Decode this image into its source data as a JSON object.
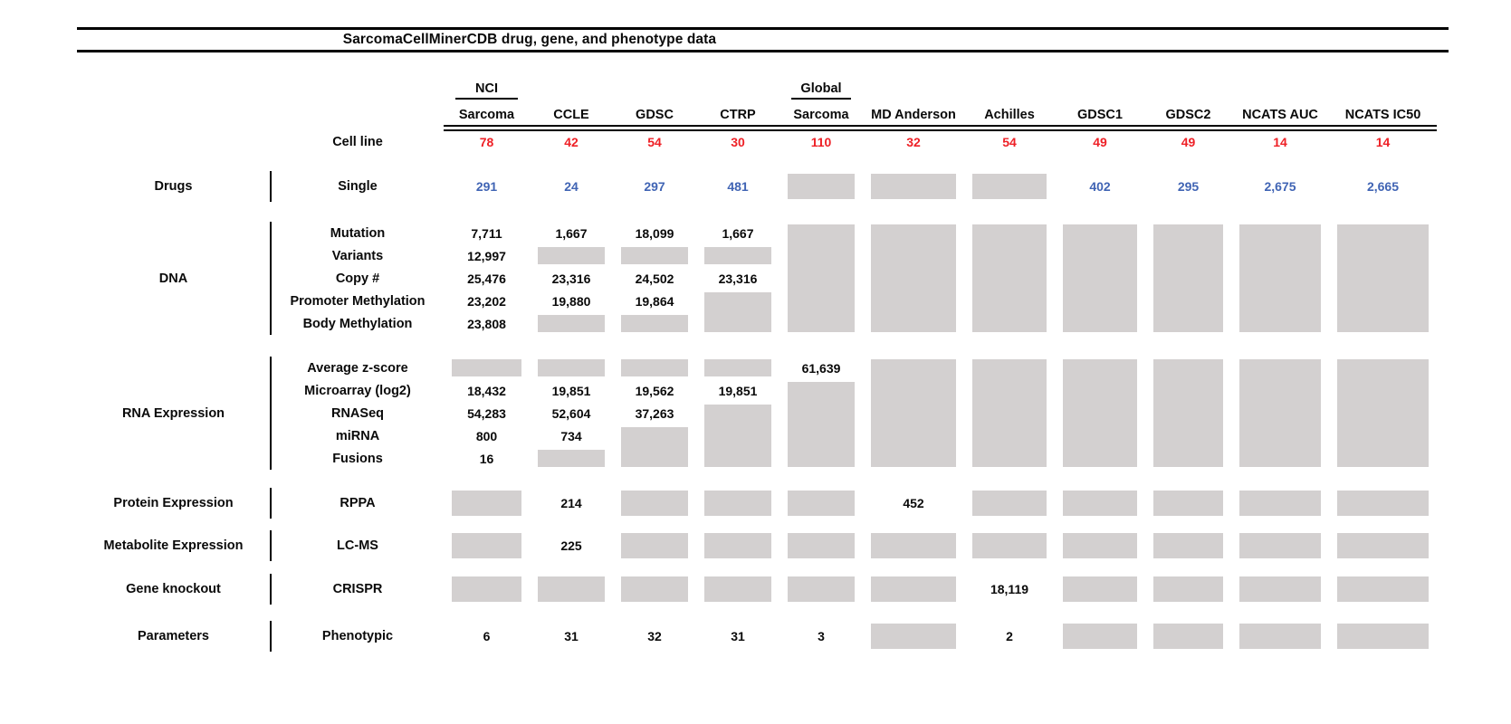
{
  "colors": {
    "red": "#ee2026",
    "blue": "#4064b4",
    "gray_box": "#d3d0d0",
    "rule": "#000000"
  },
  "chart_data": {
    "type": "table",
    "title": "SarcomaCellMinerCDB drug, gene, and phenotype data",
    "gray_box_meaning": "no data",
    "columns": [
      {
        "top": "NCI",
        "label": "Sarcoma"
      },
      {
        "label": "CCLE"
      },
      {
        "label": "GDSC"
      },
      {
        "label": "CTRP"
      },
      {
        "top": "Global",
        "label": "Sarcoma"
      },
      {
        "label": "MD Anderson"
      },
      {
        "label": "Achilles"
      },
      {
        "label": "GDSC1"
      },
      {
        "label": "GDSC2"
      },
      {
        "label": "NCATS AUC"
      },
      {
        "label": "NCATS IC50"
      }
    ],
    "cell_line_row": {
      "label": "Cell line",
      "color": "red",
      "values": [
        "78",
        "42",
        "54",
        "30",
        "110",
        "32",
        "54",
        "49",
        "49",
        "14",
        "14"
      ]
    },
    "sections": [
      {
        "category": "Drugs",
        "rows": [
          {
            "label": "Single",
            "color": "blue",
            "cells": [
              "291",
              "24",
              "297",
              "481",
              {
                "box": 1
              },
              {
                "box": 1
              },
              {
                "box": 1
              },
              "402",
              "295",
              "2,675",
              "2,665"
            ]
          }
        ]
      },
      {
        "category": "DNA",
        "rows": [
          {
            "label": "Mutation",
            "cells": [
              "7,711",
              "1,667",
              "18,099",
              "1,667",
              {
                "box": 5
              },
              {
                "box": 5
              },
              {
                "box": 5
              },
              {
                "box": 5
              },
              {
                "box": 5
              },
              {
                "box": 5
              },
              {
                "box": 5
              }
            ]
          },
          {
            "label": "Variants",
            "cells": [
              "12,997",
              {
                "box": 1
              },
              {
                "box": 1
              },
              {
                "box": 1
              },
              null,
              null,
              null,
              null,
              null,
              null,
              null
            ]
          },
          {
            "label": "Copy #",
            "cells": [
              "25,476",
              "23,316",
              "24,502",
              "23,316",
              null,
              null,
              null,
              null,
              null,
              null,
              null
            ]
          },
          {
            "label": "Promoter Methylation",
            "cells": [
              "23,202",
              "19,880",
              "19,864",
              {
                "box": 2
              },
              null,
              null,
              null,
              null,
              null,
              null,
              null
            ]
          },
          {
            "label": "Body Methylation",
            "cells": [
              "23,808",
              {
                "box": 1
              },
              {
                "box": 1
              },
              null,
              null,
              null,
              null,
              null,
              null,
              null,
              null
            ]
          }
        ]
      },
      {
        "category": "RNA Expression",
        "rows": [
          {
            "label": "Average z-score",
            "cells": [
              {
                "box": 1
              },
              {
                "box": 1
              },
              {
                "box": 1
              },
              {
                "box": 1
              },
              "61,639",
              {
                "box": 5
              },
              {
                "box": 5
              },
              {
                "box": 5
              },
              {
                "box": 5
              },
              {
                "box": 5
              },
              {
                "box": 5
              }
            ]
          },
          {
            "label": "Microarray (log2)",
            "cells": [
              "18,432",
              "19,851",
              "19,562",
              "19,851",
              {
                "box": 4
              },
              null,
              null,
              null,
              null,
              null,
              null
            ]
          },
          {
            "label": "RNASeq",
            "cells": [
              "54,283",
              "52,604",
              "37,263",
              {
                "box": 3
              },
              null,
              null,
              null,
              null,
              null,
              null,
              null
            ]
          },
          {
            "label": "miRNA",
            "cells": [
              "800",
              "734",
              {
                "box": 2
              },
              null,
              null,
              null,
              null,
              null,
              null,
              null,
              null
            ]
          },
          {
            "label": "Fusions",
            "cells": [
              "16",
              {
                "box": 1
              },
              null,
              null,
              null,
              null,
              null,
              null,
              null,
              null,
              null
            ]
          }
        ]
      },
      {
        "category": "Protein Expression",
        "rows": [
          {
            "label": "RPPA",
            "cells": [
              {
                "box": 1
              },
              "214",
              {
                "box": 1
              },
              {
                "box": 1
              },
              {
                "box": 1
              },
              "452",
              {
                "box": 1
              },
              {
                "box": 1
              },
              {
                "box": 1
              },
              {
                "box": 1
              },
              {
                "box": 1
              }
            ]
          }
        ]
      },
      {
        "category": "Metabolite Expression",
        "rows": [
          {
            "label": "LC-MS",
            "cells": [
              {
                "box": 1
              },
              "225",
              {
                "box": 1
              },
              {
                "box": 1
              },
              {
                "box": 1
              },
              {
                "box": 1
              },
              {
                "box": 1
              },
              {
                "box": 1
              },
              {
                "box": 1
              },
              {
                "box": 1
              },
              {
                "box": 1
              }
            ]
          }
        ]
      },
      {
        "category": "Gene knockout",
        "rows": [
          {
            "label": "CRISPR",
            "cells": [
              {
                "box": 1
              },
              {
                "box": 1
              },
              {
                "box": 1
              },
              {
                "box": 1
              },
              {
                "box": 1
              },
              {
                "box": 1
              },
              "18,119",
              {
                "box": 1
              },
              {
                "box": 1
              },
              {
                "box": 1
              },
              {
                "box": 1
              }
            ]
          }
        ]
      },
      {
        "category": "Parameters",
        "rows": [
          {
            "label": "Phenotypic",
            "cells": [
              "6",
              "31",
              "32",
              "31",
              "3",
              {
                "box": 1
              },
              "2",
              {
                "box": 1
              },
              {
                "box": 1
              },
              {
                "box": 1
              },
              {
                "box": 1
              }
            ]
          }
        ]
      }
    ]
  }
}
